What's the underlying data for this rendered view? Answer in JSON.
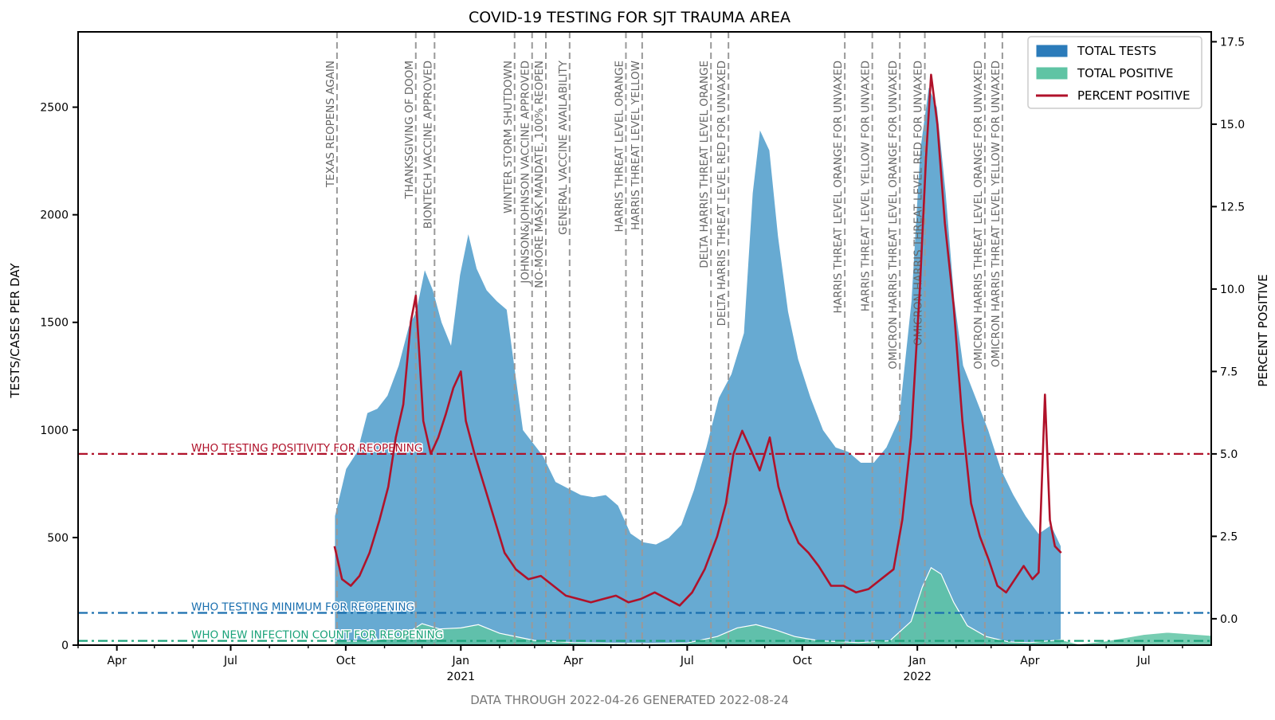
{
  "chart_data": {
    "type": "area",
    "title": "COVID-19 TESTING FOR SJT TRAUMA AREA",
    "footer": "DATA THROUGH 2022-04-26 GENERATED 2022-08-24",
    "ylabel_left": "TESTS/CASES PER DAY",
    "ylabel_right": "PERCENT POSITIVE",
    "xlim": [
      "2020-03-01",
      "2022-08-24"
    ],
    "ylim_left": [
      0,
      2850
    ],
    "ylim_right": [
      -0.8,
      17.8
    ],
    "x_ticks": [
      {
        "date": "2020-04-01",
        "label": "Apr"
      },
      {
        "date": "2020-07-01",
        "label": "Jul"
      },
      {
        "date": "2020-10-01",
        "label": "Oct"
      },
      {
        "date": "2021-01-01",
        "label": "Jan"
      },
      {
        "date": "2021-04-01",
        "label": "Apr"
      },
      {
        "date": "2021-07-01",
        "label": "Jul"
      },
      {
        "date": "2021-10-01",
        "label": "Oct"
      },
      {
        "date": "2022-01-01",
        "label": "Jan"
      },
      {
        "date": "2022-04-01",
        "label": "Apr"
      },
      {
        "date": "2022-07-01",
        "label": "Jul"
      }
    ],
    "year_labels": [
      {
        "date": "2021-01-01",
        "label": "2021"
      },
      {
        "date": "2022-01-01",
        "label": "2022"
      }
    ],
    "y_ticks_left": [
      0,
      500,
      1000,
      1500,
      2000,
      2500
    ],
    "y_ticks_right": [
      {
        "value": 0.0,
        "label": "0.0"
      },
      {
        "value": 2.5,
        "label": "2.5"
      },
      {
        "value": 5.0,
        "label": "5.0"
      },
      {
        "value": 7.5,
        "label": "7.5"
      },
      {
        "value": 10.0,
        "label": "10.0"
      },
      {
        "value": 12.5,
        "label": "12.5"
      },
      {
        "value": 15.0,
        "label": "15.0"
      },
      {
        "value": 17.5,
        "label": "17.5"
      }
    ],
    "legend": {
      "position": "top-right",
      "entries": [
        {
          "label": "TOTAL TESTS",
          "kind": "patch",
          "color": "#2b7bba"
        },
        {
          "label": "TOTAL POSITIVE",
          "kind": "patch",
          "color": "#5fc4a4"
        },
        {
          "label": "PERCENT POSITIVE",
          "kind": "line",
          "color": "#b0122a"
        }
      ]
    },
    "reference_lines": [
      {
        "label": "WHO TESTING POSITIVITY FOR REOPENING",
        "axis": "right",
        "value": 5.0,
        "color": "#b0122a"
      },
      {
        "label": "WHO TESTING MINIMUM FOR REOPENING",
        "axis": "left",
        "value": 150,
        "color": "#1a6faf"
      },
      {
        "label": "WHO NEW INFECTION COUNT FOR REOPENING",
        "axis": "left",
        "value": 20,
        "color": "#1ba37a"
      }
    ],
    "events": [
      {
        "date": "2020-09-24",
        "label": "TEXAS REOPENS AGAIN"
      },
      {
        "date": "2020-11-26",
        "label": "THANKSGIVING OF DOOM"
      },
      {
        "date": "2020-12-11",
        "label": "BIONTECH VACCINE APPROVED"
      },
      {
        "date": "2021-02-13",
        "label": "WINTER STORM SHUTDOWN"
      },
      {
        "date": "2021-02-27",
        "label": "JOHNSON&JOHNSON VACCINE APPROVED"
      },
      {
        "date": "2021-03-10",
        "label": "NO-MORE MASK MANDATE, 100% REOPEN"
      },
      {
        "date": "2021-03-29",
        "label": "GENERAL VACCINE AVAILABILITY"
      },
      {
        "date": "2021-05-13",
        "label": "HARRIS THREAT LEVEL ORANGE"
      },
      {
        "date": "2021-05-26",
        "label": "HARRIS THREAT LEVEL YELLOW"
      },
      {
        "date": "2021-07-20",
        "label": "DELTA HARRIS THREAT LEVEL ORANGE"
      },
      {
        "date": "2021-08-03",
        "label": "DELTA HARRIS THREAT LEVEL RED FOR UNVAXED"
      },
      {
        "date": "2021-11-04",
        "label": "HARRIS THREAT LEVEL ORANGE FOR UNVAXED"
      },
      {
        "date": "2021-11-26",
        "label": "HARRIS THREAT LEVEL YELLOW FOR UNVAXED"
      },
      {
        "date": "2021-12-18",
        "label": "OMICRON HARRIS THREAT LEVEL ORANGE FOR UNVAXED"
      },
      {
        "date": "2022-01-07",
        "label": "OMICRON HARRIS THREAT LEVEL RED FOR UNVAXED"
      },
      {
        "date": "2022-02-24",
        "label": "OMICRON HARRIS THREAT LEVEL ORANGE FOR UNVAXED"
      },
      {
        "date": "2022-03-10",
        "label": "OMICRON HARRIS THREAT LEVEL YELLOW FOR UNVAXED"
      }
    ],
    "series": [
      {
        "name": "TOTAL TESTS",
        "axis": "left",
        "color": "#67aad2",
        "points": [
          [
            "2020-09-22",
            600
          ],
          [
            "2020-10-01",
            820
          ],
          [
            "2020-10-10",
            900
          ],
          [
            "2020-10-18",
            1080
          ],
          [
            "2020-10-26",
            1100
          ],
          [
            "2020-11-03",
            1160
          ],
          [
            "2020-11-12",
            1300
          ],
          [
            "2020-11-20",
            1480
          ],
          [
            "2020-11-26",
            1550
          ],
          [
            "2020-12-03",
            1750
          ],
          [
            "2020-12-10",
            1650
          ],
          [
            "2020-12-17",
            1500
          ],
          [
            "2020-12-24",
            1400
          ],
          [
            "2020-12-31",
            1720
          ],
          [
            "2021-01-07",
            1920
          ],
          [
            "2021-01-14",
            1750
          ],
          [
            "2021-01-22",
            1650
          ],
          [
            "2021-01-30",
            1600
          ],
          [
            "2021-02-07",
            1560
          ],
          [
            "2021-02-13",
            1300
          ],
          [
            "2021-02-20",
            1000
          ],
          [
            "2021-02-28",
            940
          ],
          [
            "2021-03-08",
            880
          ],
          [
            "2021-03-18",
            760
          ],
          [
            "2021-03-28",
            730
          ],
          [
            "2021-04-07",
            700
          ],
          [
            "2021-04-17",
            690
          ],
          [
            "2021-04-27",
            700
          ],
          [
            "2021-05-07",
            650
          ],
          [
            "2021-05-17",
            520
          ],
          [
            "2021-05-27",
            480
          ],
          [
            "2021-06-06",
            470
          ],
          [
            "2021-06-16",
            500
          ],
          [
            "2021-06-26",
            560
          ],
          [
            "2021-07-06",
            720
          ],
          [
            "2021-07-16",
            920
          ],
          [
            "2021-07-26",
            1150
          ],
          [
            "2021-08-05",
            1260
          ],
          [
            "2021-08-15",
            1450
          ],
          [
            "2021-08-22",
            2100
          ],
          [
            "2021-08-28",
            2400
          ],
          [
            "2021-09-05",
            2300
          ],
          [
            "2021-09-12",
            1900
          ],
          [
            "2021-09-20",
            1550
          ],
          [
            "2021-09-28",
            1330
          ],
          [
            "2021-10-08",
            1150
          ],
          [
            "2021-10-18",
            1000
          ],
          [
            "2021-10-28",
            920
          ],
          [
            "2021-11-07",
            900
          ],
          [
            "2021-11-17",
            850
          ],
          [
            "2021-11-27",
            850
          ],
          [
            "2021-12-07",
            920
          ],
          [
            "2021-12-17",
            1050
          ],
          [
            "2021-12-27",
            1600
          ],
          [
            "2022-01-03",
            2300
          ],
          [
            "2022-01-10",
            2600
          ],
          [
            "2022-01-17",
            2500
          ],
          [
            "2022-01-24",
            2100
          ],
          [
            "2022-01-31",
            1600
          ],
          [
            "2022-02-07",
            1300
          ],
          [
            "2022-02-17",
            1150
          ],
          [
            "2022-02-27",
            1000
          ],
          [
            "2022-03-09",
            820
          ],
          [
            "2022-03-19",
            700
          ],
          [
            "2022-03-29",
            600
          ],
          [
            "2022-04-08",
            520
          ],
          [
            "2022-04-18",
            560
          ],
          [
            "2022-04-26",
            460
          ]
        ]
      },
      {
        "name": "TOTAL POSITIVE",
        "axis": "left",
        "color": "#5fc4a4",
        "points": [
          [
            "2020-09-22",
            20
          ],
          [
            "2020-10-15",
            18
          ],
          [
            "2020-11-15",
            40
          ],
          [
            "2020-12-01",
            100
          ],
          [
            "2020-12-15",
            75
          ],
          [
            "2021-01-01",
            80
          ],
          [
            "2021-01-15",
            95
          ],
          [
            "2021-02-01",
            55
          ],
          [
            "2021-03-01",
            22
          ],
          [
            "2021-04-01",
            12
          ],
          [
            "2021-05-01",
            9
          ],
          [
            "2021-06-01",
            7
          ],
          [
            "2021-07-01",
            10
          ],
          [
            "2021-07-25",
            40
          ],
          [
            "2021-08-10",
            80
          ],
          [
            "2021-08-25",
            95
          ],
          [
            "2021-09-10",
            70
          ],
          [
            "2021-09-25",
            40
          ],
          [
            "2021-10-15",
            20
          ],
          [
            "2021-11-15",
            12
          ],
          [
            "2021-12-10",
            20
          ],
          [
            "2021-12-27",
            110
          ],
          [
            "2022-01-05",
            270
          ],
          [
            "2022-01-12",
            360
          ],
          [
            "2022-01-20",
            330
          ],
          [
            "2022-01-30",
            200
          ],
          [
            "2022-02-10",
            90
          ],
          [
            "2022-02-25",
            40
          ],
          [
            "2022-03-15",
            15
          ],
          [
            "2022-04-01",
            12
          ],
          [
            "2022-04-26",
            25
          ],
          [
            "2022-05-10",
            5
          ],
          [
            "2022-06-01",
            20
          ],
          [
            "2022-07-01",
            50
          ],
          [
            "2022-07-20",
            60
          ],
          [
            "2022-08-24",
            45
          ]
        ]
      },
      {
        "name": "PERCENT POSITIVE",
        "axis": "right",
        "color": "#b0122a",
        "points": [
          [
            "2020-09-22",
            2.2
          ],
          [
            "2020-09-28",
            1.2
          ],
          [
            "2020-10-05",
            1.0
          ],
          [
            "2020-10-12",
            1.3
          ],
          [
            "2020-10-20",
            2.0
          ],
          [
            "2020-10-28",
            3.0
          ],
          [
            "2020-11-04",
            4.0
          ],
          [
            "2020-11-10",
            5.5
          ],
          [
            "2020-11-16",
            6.5
          ],
          [
            "2020-11-22",
            9.0
          ],
          [
            "2020-11-26",
            9.8
          ],
          [
            "2020-12-02",
            6.0
          ],
          [
            "2020-12-08",
            5.0
          ],
          [
            "2020-12-14",
            5.5
          ],
          [
            "2020-12-20",
            6.2
          ],
          [
            "2020-12-26",
            7.0
          ],
          [
            "2021-01-01",
            7.5
          ],
          [
            "2021-01-05",
            6.0
          ],
          [
            "2021-01-12",
            5.0
          ],
          [
            "2021-01-20",
            4.0
          ],
          [
            "2021-01-28",
            3.0
          ],
          [
            "2021-02-05",
            2.0
          ],
          [
            "2021-02-14",
            1.5
          ],
          [
            "2021-02-24",
            1.2
          ],
          [
            "2021-03-06",
            1.3
          ],
          [
            "2021-03-16",
            1.0
          ],
          [
            "2021-03-26",
            0.7
          ],
          [
            "2021-04-05",
            0.6
          ],
          [
            "2021-04-15",
            0.5
          ],
          [
            "2021-04-25",
            0.6
          ],
          [
            "2021-05-05",
            0.7
          ],
          [
            "2021-05-15",
            0.5
          ],
          [
            "2021-05-25",
            0.6
          ],
          [
            "2021-06-05",
            0.8
          ],
          [
            "2021-06-15",
            0.6
          ],
          [
            "2021-06-25",
            0.4
          ],
          [
            "2021-07-05",
            0.8
          ],
          [
            "2021-07-15",
            1.5
          ],
          [
            "2021-07-25",
            2.5
          ],
          [
            "2021-08-01",
            3.5
          ],
          [
            "2021-08-07",
            5.0
          ],
          [
            "2021-08-14",
            5.7
          ],
          [
            "2021-08-20",
            5.2
          ],
          [
            "2021-08-28",
            4.5
          ],
          [
            "2021-09-05",
            5.5
          ],
          [
            "2021-09-12",
            4.0
          ],
          [
            "2021-09-20",
            3.0
          ],
          [
            "2021-09-28",
            2.3
          ],
          [
            "2021-10-06",
            2.0
          ],
          [
            "2021-10-14",
            1.6
          ],
          [
            "2021-10-24",
            1.0
          ],
          [
            "2021-11-03",
            1.0
          ],
          [
            "2021-11-13",
            0.8
          ],
          [
            "2021-11-23",
            0.9
          ],
          [
            "2021-12-03",
            1.2
          ],
          [
            "2021-12-13",
            1.5
          ],
          [
            "2021-12-20",
            3.0
          ],
          [
            "2021-12-27",
            5.5
          ],
          [
            "2022-01-03",
            10.0
          ],
          [
            "2022-01-08",
            14.0
          ],
          [
            "2022-01-12",
            16.5
          ],
          [
            "2022-01-17",
            15.0
          ],
          [
            "2022-01-23",
            12.0
          ],
          [
            "2022-01-30",
            9.5
          ],
          [
            "2022-02-06",
            6.0
          ],
          [
            "2022-02-13",
            3.5
          ],
          [
            "2022-02-20",
            2.5
          ],
          [
            "2022-02-27",
            1.8
          ],
          [
            "2022-03-06",
            1.0
          ],
          [
            "2022-03-13",
            0.8
          ],
          [
            "2022-03-20",
            1.2
          ],
          [
            "2022-03-27",
            1.6
          ],
          [
            "2022-04-03",
            1.2
          ],
          [
            "2022-04-08",
            1.4
          ],
          [
            "2022-04-13",
            6.8
          ],
          [
            "2022-04-17",
            3.0
          ],
          [
            "2022-04-21",
            2.2
          ],
          [
            "2022-04-26",
            2.0
          ]
        ]
      }
    ]
  }
}
